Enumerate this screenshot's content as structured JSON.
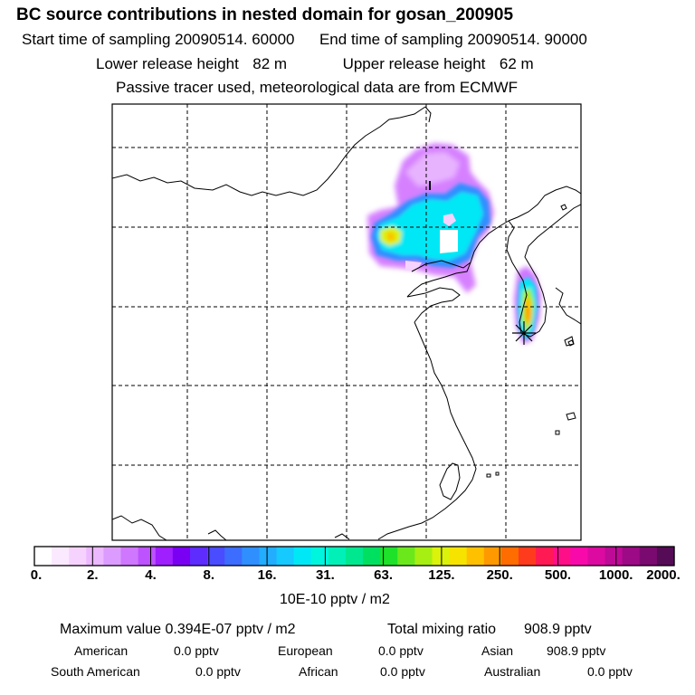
{
  "header": {
    "title": "BC  source contributions in nested domain for gosan_200905",
    "start_label": "Start time of sampling",
    "start_value": "20090514. 60000",
    "end_label": "End time of sampling",
    "end_value": "20090514. 90000",
    "lower_label": "Lower release height",
    "lower_value": "82 m",
    "upper_label": "Upper release height",
    "upper_value": "62 m",
    "note": "Passive tracer used, meteorological data are from ECMWF"
  },
  "colorbar": {
    "colors": [
      "#ffffff",
      "#fbe9ff",
      "#f6d2ff",
      "#ecb8ff",
      "#dc9cff",
      "#cf77ff",
      "#bd52ff",
      "#9f1fff",
      "#7a00f4",
      "#5e2cff",
      "#4a4cff",
      "#3c6dff",
      "#2f8fff",
      "#22adff",
      "#16c9ff",
      "#00e8f5",
      "#00f5de",
      "#00f0b8",
      "#00e88f",
      "#00e060",
      "#1ee12a",
      "#6ae81c",
      "#a7ee12",
      "#dbf20a",
      "#f7e300",
      "#ffc000",
      "#ff9900",
      "#ff6c00",
      "#ff3b1e",
      "#ff1a54",
      "#ff0f87",
      "#f80aaa",
      "#dc0aa0",
      "#bd0a97",
      "#9c0a85",
      "#7a0a70",
      "#560b57"
    ],
    "ticks": [
      "0.",
      "2.",
      "4.",
      "8.",
      "16.",
      "31.",
      "63.",
      "125.",
      "250.",
      "500.",
      "1000.",
      "2000."
    ],
    "units": "10E-10 pptv / m2"
  },
  "stats": {
    "max_label": "Maximum value",
    "max_value": "0.394E-07 pptv / m2",
    "total_label": "Total mixing ratio",
    "total_value": "908.9 pptv",
    "regions": [
      {
        "name": "American",
        "value": "0.0 pptv"
      },
      {
        "name": "European",
        "value": "0.0 pptv"
      },
      {
        "name": "Asian",
        "value": "908.9 pptv"
      },
      {
        "name": "South American",
        "value": "0.0 pptv"
      },
      {
        "name": "African",
        "value": "0.0 pptv"
      },
      {
        "name": "Australian",
        "value": "0.0 pptv"
      }
    ]
  }
}
